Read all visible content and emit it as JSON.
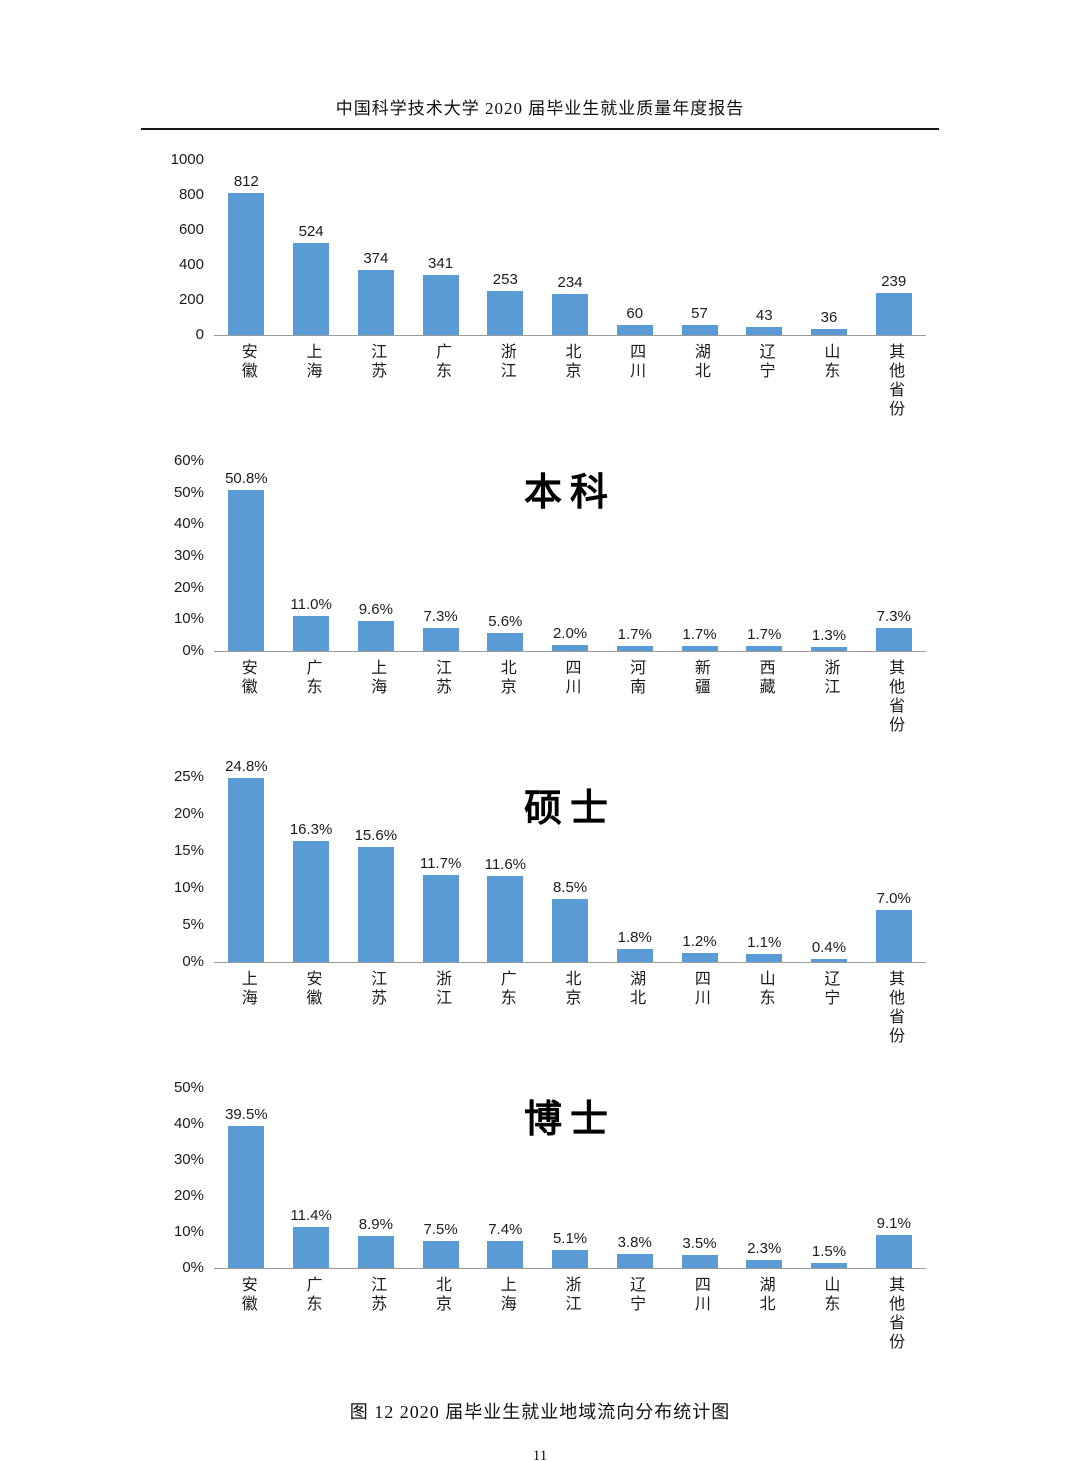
{
  "page": {
    "header": "中国科学技术大学 2020 届毕业生就业质量年度报告",
    "caption": "图 12  2020 届毕业生就业地域流向分布统计图",
    "page_number": "11"
  },
  "colors": {
    "bar": "#5B9BD5"
  },
  "chart_data": [
    {
      "type": "bar",
      "title": "",
      "categories": [
        "安徽",
        "上海",
        "江苏",
        "广东",
        "浙江",
        "北京",
        "四川",
        "湖北",
        "辽宁",
        "山东",
        "其他省份"
      ],
      "values": [
        812,
        524,
        374,
        341,
        253,
        234,
        60,
        57,
        43,
        36,
        239
      ],
      "value_labels": [
        "812",
        "524",
        "374",
        "341",
        "253",
        "234",
        "60",
        "57",
        "43",
        "36",
        "239"
      ],
      "ymax": 1000,
      "ylim": [
        0,
        1000
      ],
      "yticks": [
        "1000",
        "800",
        "600",
        "400",
        "200",
        "0"
      ],
      "grid": false,
      "legend": false
    },
    {
      "type": "bar",
      "title": "本科",
      "categories": [
        "安徽",
        "广东",
        "上海",
        "江苏",
        "北京",
        "四川",
        "河南",
        "新疆",
        "西藏",
        "浙江",
        "其他省份"
      ],
      "values": [
        50.8,
        11.0,
        9.6,
        7.3,
        5.6,
        2.0,
        1.7,
        1.7,
        1.7,
        1.3,
        7.3
      ],
      "value_labels": [
        "50.8%",
        "11.0%",
        "9.6%",
        "7.3%",
        "5.6%",
        "2.0%",
        "1.7%",
        "1.7%",
        "1.7%",
        "1.3%",
        "7.3%"
      ],
      "ymax": 60,
      "ylim": [
        0,
        60
      ],
      "yticks": [
        "60%",
        "50%",
        "40%",
        "30%",
        "20%",
        "10%",
        "0%"
      ],
      "grid": false,
      "legend": false
    },
    {
      "type": "bar",
      "title": "硕士",
      "categories": [
        "上海",
        "安徽",
        "江苏",
        "浙江",
        "广东",
        "北京",
        "湖北",
        "四川",
        "山东",
        "辽宁",
        "其他省份"
      ],
      "values": [
        24.8,
        16.3,
        15.6,
        11.7,
        11.6,
        8.5,
        1.8,
        1.2,
        1.1,
        0.4,
        7.0
      ],
      "value_labels": [
        "24.8%",
        "16.3%",
        "15.6%",
        "11.7%",
        "11.6%",
        "8.5%",
        "1.8%",
        "1.2%",
        "1.1%",
        "0.4%",
        "7.0%"
      ],
      "ymax": 25,
      "ylim": [
        0,
        25
      ],
      "yticks": [
        "25%",
        "20%",
        "15%",
        "10%",
        "5%",
        "0%"
      ],
      "grid": false,
      "legend": false
    },
    {
      "type": "bar",
      "title": "博士",
      "categories": [
        "安徽",
        "广东",
        "江苏",
        "北京",
        "上海",
        "浙江",
        "辽宁",
        "四川",
        "湖北",
        "山东",
        "其他省份"
      ],
      "values": [
        39.5,
        11.4,
        8.9,
        7.5,
        7.4,
        5.1,
        3.8,
        3.5,
        2.3,
        1.5,
        9.1
      ],
      "value_labels": [
        "39.5%",
        "11.4%",
        "8.9%",
        "7.5%",
        "7.4%",
        "5.1%",
        "3.8%",
        "3.5%",
        "2.3%",
        "1.5%",
        "9.1%"
      ],
      "ymax": 50,
      "ylim": [
        0,
        50
      ],
      "yticks": [
        "50%",
        "40%",
        "30%",
        "20%",
        "10%",
        "0%"
      ],
      "grid": false,
      "legend": false
    }
  ]
}
